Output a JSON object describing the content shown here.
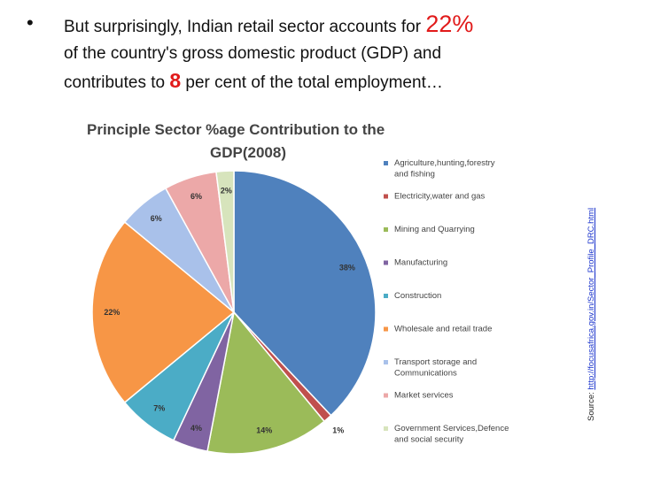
{
  "bullet": {
    "line1_pre": "But surprisingly, Indian retail sector accounts for ",
    "line1_num": "22%",
    "line2": "of the country's gross domestic product (GDP) and",
    "line3_pre": "contributes to ",
    "line3_num": "8",
    "line3_post": " per cent of the total employment…"
  },
  "source": {
    "label": "Source: ",
    "link": "http://focusafrica.gov.in/Sector_Profile_DRC.html"
  },
  "chart_data": {
    "type": "pie",
    "title_line1": "Principle Sector %age Contribution to the",
    "title_line2": "GDP(2008)",
    "legend_position": "right",
    "slices": [
      {
        "label": "Agriculture,hunting,forestry and fishing",
        "value": 38,
        "value_label": "38%",
        "color": "#4f81bd"
      },
      {
        "label": "Electricity,water and gas",
        "value": 1,
        "value_label": "1%",
        "color": "#c0504d"
      },
      {
        "label": "Mining and Quarrying",
        "value": 14,
        "value_label": "14%",
        "color": "#9bbb59"
      },
      {
        "label": "Manufacturing",
        "value": 4,
        "value_label": "4%",
        "color": "#8064a2"
      },
      {
        "label": "Construction",
        "value": 7,
        "value_label": "7%",
        "color": "#4bacc6"
      },
      {
        "label": "Wholesale and retail trade",
        "value": 22,
        "value_label": "22%",
        "color": "#f79646"
      },
      {
        "label": "Transport storage and Communications",
        "value": 6,
        "value_label": "6%",
        "color": "#a9c1ea"
      },
      {
        "label": "Market services",
        "value": 6,
        "value_label": "6%",
        "color": "#eca8a8"
      },
      {
        "label": "Government Services,Defence and social security",
        "value": 2,
        "value_label": "2%",
        "color": "#d7e4bc"
      }
    ]
  }
}
